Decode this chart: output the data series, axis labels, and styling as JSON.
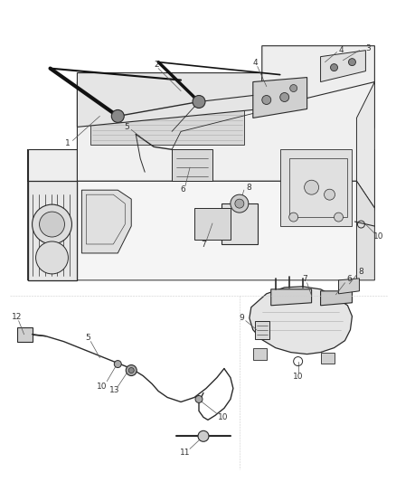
{
  "bg_color": "#ffffff",
  "line_color": "#2a2a2a",
  "label_color": "#333333",
  "label_fontsize": 6.5,
  "figsize": [
    4.38,
    5.33
  ],
  "dpi": 100,
  "gray_fill": "#c8c8c8",
  "light_gray": "#e0e0e0",
  "dark_gray": "#888888",
  "mid_gray": "#aaaaaa"
}
